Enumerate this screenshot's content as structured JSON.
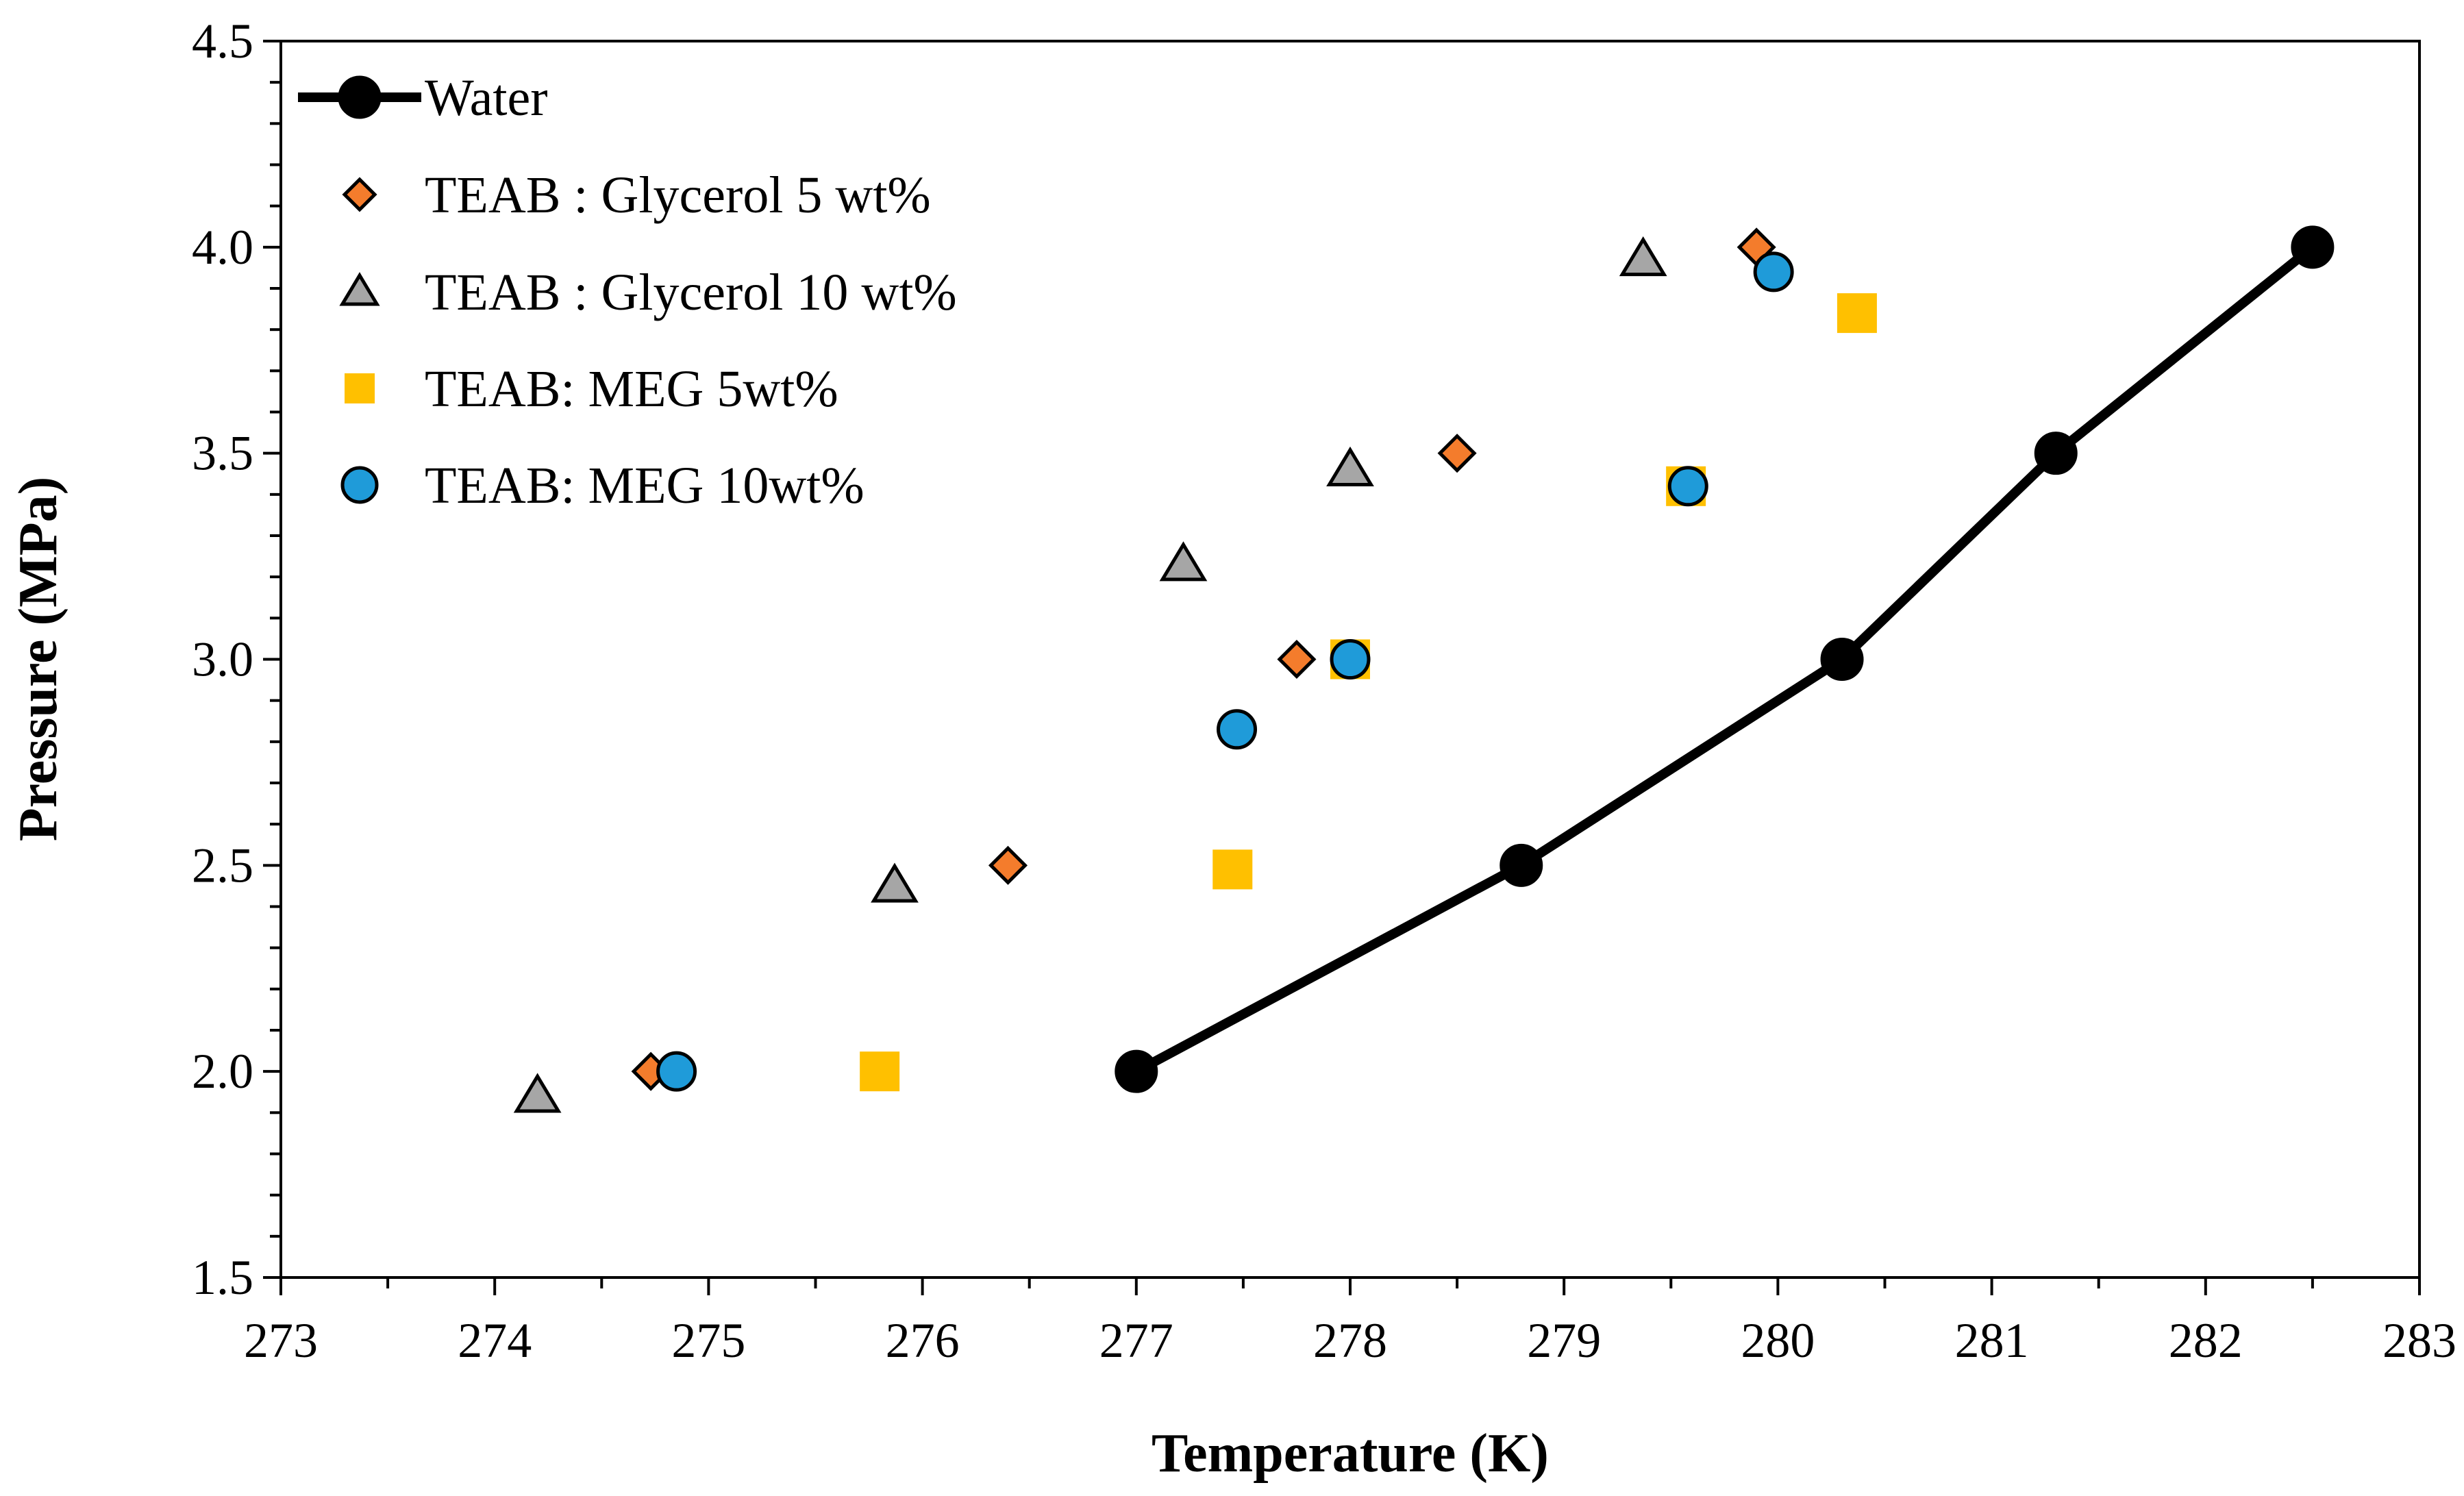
{
  "chart_data": {
    "type": "scatter",
    "xlabel": "Temperature (K)",
    "ylabel": "Pressure (MPa)",
    "xlim": [
      273,
      283
    ],
    "ylim": [
      1.5,
      4.5
    ],
    "x_ticks": [
      "273",
      "274",
      "275",
      "276",
      "277",
      "278",
      "279",
      "280",
      "281",
      "282",
      "283"
    ],
    "y_ticks": [
      "1.5",
      "2.0",
      "2.5",
      "3.0",
      "3.5",
      "4.0",
      "4.5"
    ],
    "grid": false,
    "legend_position": "top-left",
    "series": [
      {
        "name": "Water",
        "style": "line-marker",
        "marker": "circle",
        "color": "#000000",
        "points": [
          [
            277.0,
            2.0
          ],
          [
            278.8,
            2.5
          ],
          [
            280.3,
            3.0
          ],
          [
            281.3,
            3.5
          ],
          [
            282.5,
            4.0
          ]
        ]
      },
      {
        "name": "TEAB : Glycerol 5 wt%",
        "style": "marker",
        "marker": "diamond",
        "color": "#F47C2C",
        "points": [
          [
            274.73,
            2.0
          ],
          [
            276.4,
            2.5
          ],
          [
            277.75,
            3.0
          ],
          [
            278.5,
            3.5
          ],
          [
            279.9,
            4.0
          ]
        ]
      },
      {
        "name": "TEAB : Glycerol 10 wt%",
        "style": "marker",
        "marker": "triangle",
        "color": "#A6A6A6",
        "points": [
          [
            274.2,
            1.94
          ],
          [
            275.87,
            2.45
          ],
          [
            277.22,
            3.23
          ],
          [
            278.0,
            3.46
          ],
          [
            279.37,
            3.97
          ]
        ]
      },
      {
        "name": "TEAB: MEG 5wt%",
        "style": "marker",
        "marker": "square",
        "color": "#FFC000",
        "points": [
          [
            275.8,
            2.0
          ],
          [
            277.45,
            2.49
          ],
          [
            278.0,
            3.0
          ],
          [
            279.57,
            3.42
          ],
          [
            280.37,
            3.84
          ]
        ]
      },
      {
        "name": "TEAB: MEG 10wt%",
        "style": "marker",
        "marker": "circle",
        "color": "#1F9BD9",
        "points": [
          [
            274.85,
            2.0
          ],
          [
            277.47,
            2.83
          ],
          [
            278.0,
            3.0
          ],
          [
            279.58,
            3.42
          ],
          [
            279.98,
            3.94
          ]
        ]
      }
    ]
  }
}
